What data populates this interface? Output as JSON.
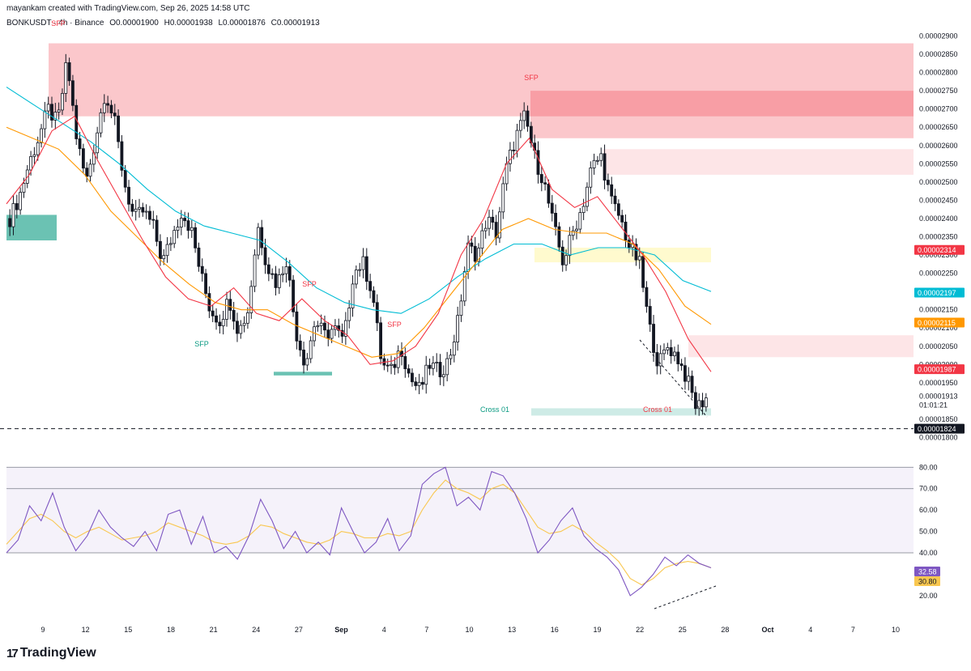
{
  "header": {
    "credit": "mayankam created with TradingView.com, Sep 26, 2025 14:58 UTC",
    "symbol": "BONKUSDT · 4h · Binance",
    "open": "O0.00001900",
    "high": "H0.00001938",
    "low": "L0.00001876",
    "close": "C0.00001913"
  },
  "footer": {
    "brand": "TradingView",
    "brand_mark": "17"
  },
  "colors": {
    "bull": "#ffffff",
    "bear": "#131722",
    "supply": "#f23645",
    "demand": "#089981",
    "ema_fast": "#f23645",
    "ema_mid": "#ff9800",
    "ema_slow": "#00bcd4",
    "rsi": "#7e57c2",
    "rsi_ma": "#f9c74f",
    "zone_yellow": "#fff59d"
  },
  "chart_data": [
    {
      "type": "candlestick",
      "title": "BONKUSDT · 4h · Binance",
      "ylim": [
        1.79e-05,
        2.91e-05
      ],
      "y_ticks": [
        "0.00002900",
        "0.00002850",
        "0.00002800",
        "0.00002750",
        "0.00002700",
        "0.00002650",
        "0.00002600",
        "0.00002550",
        "0.00002500",
        "0.00002450",
        "0.00002400",
        "0.00002350",
        "0.00002300",
        "0.00002250",
        "0.00002200",
        "0.00002150",
        "0.00002100",
        "0.00002050",
        "0.00002000",
        "0.00001950",
        "0.00001850",
        "0.00001800"
      ],
      "x_ticks": [
        "9",
        "12",
        "15",
        "18",
        "21",
        "24",
        "27",
        "Sep",
        "4",
        "7",
        "10",
        "13",
        "16",
        "19",
        "22",
        "25",
        "28",
        "Oct",
        "4",
        "7",
        "10"
      ],
      "price_labels": [
        {
          "text": "0.00002314",
          "value": 2.314e-05,
          "color": "#f23645"
        },
        {
          "text": "0.00002197",
          "value": 2.197e-05,
          "color": "#00bcd4"
        },
        {
          "text": "0.00002115",
          "value": 2.115e-05,
          "color": "#ff9800"
        },
        {
          "text": "0.00001987",
          "value": 1.987e-05,
          "color": "#f23645"
        },
        {
          "text": "0.00001824",
          "value": 1.824e-05,
          "color": "#131722"
        }
      ],
      "last_price": {
        "text": "0.00001913",
        "countdown": "01:01:21",
        "value": 1.913e-05
      },
      "dashed_level": 1.824e-05,
      "annotations": [
        {
          "text": "SFP",
          "color": "#f23645"
        },
        {
          "text": "SFP",
          "color": "#f23645"
        },
        {
          "text": "SFP",
          "color": "#f23645"
        },
        {
          "text": "SFP",
          "color": "#f23645"
        },
        {
          "text": "SFP",
          "color": "#089981"
        },
        {
          "text": "Cross 01",
          "color": "#089981"
        },
        {
          "text": "Cross 01",
          "color": "#f23645"
        }
      ],
      "zones": [
        {
          "kind": "supply",
          "from": 2.68e-05,
          "to": 2.88e-05
        },
        {
          "kind": "supply",
          "from": 2.62e-05,
          "to": 2.75e-05
        },
        {
          "kind": "supply_light",
          "from": 2.52e-05,
          "to": 2.59e-05
        },
        {
          "kind": "supply_light",
          "from": 2.02e-05,
          "to": 2.08e-05
        },
        {
          "kind": "yellow",
          "from": 2.28e-05,
          "to": 2.32e-05
        },
        {
          "kind": "demand",
          "from": 2.34e-05,
          "to": 2.41e-05
        },
        {
          "kind": "demand",
          "from": 1.97e-05,
          "to": 1.98e-05
        },
        {
          "kind": "demand_light",
          "from": 1.86e-05,
          "to": 1.88e-05
        }
      ],
      "price_path": [
        2.4e-05,
        2.46e-05,
        2.55e-05,
        2.62e-05,
        2.7e-05,
        2.66e-05,
        2.83e-05,
        2.62e-05,
        2.5e-05,
        2.62e-05,
        2.75e-05,
        2.66e-05,
        2.5e-05,
        2.4e-05,
        2.42e-05,
        2.38e-05,
        2.28e-05,
        2.35e-05,
        2.42e-05,
        2.37e-05,
        2.25e-05,
        2.15e-05,
        2.12e-05,
        2.18e-05,
        2.09e-05,
        2.15e-05,
        2.38e-05,
        2.27e-05,
        2.22e-05,
        2.29e-05,
        2.09e-05,
        2e-05,
        2.12e-05,
        2.08e-05,
        2.1e-05,
        2.06e-05,
        2.25e-05,
        2.28e-05,
        2.2e-05,
        2e-05,
        1.98e-05,
        2.05e-05,
        1.96e-05,
        1.93e-05,
        2e-05,
        1.98e-05,
        2.01e-05,
        2.12e-05,
        2.32e-05,
        2.3e-05,
        2.4e-05,
        2.36e-05,
        2.53e-05,
        2.62e-05,
        2.68e-05,
        2.57e-05,
        2.5e-05,
        2.38e-05,
        2.28e-05,
        2.36e-05,
        2.43e-05,
        2.54e-05,
        2.57e-05,
        2.45e-05,
        2.4e-05,
        2.32e-05,
        2.28e-05,
        2.11e-05,
        2e-05,
        2.05e-05,
        2.02e-05,
        1.96e-05,
        1.88e-05,
        1.91e-05
      ],
      "ema_fast_path": [
        2.44e-05,
        2.52e-05,
        2.64e-05,
        2.68e-05,
        2.56e-05,
        2.45e-05,
        2.34e-05,
        2.24e-05,
        2.18e-05,
        2.16e-05,
        2.21e-05,
        2.14e-05,
        2.12e-05,
        2.18e-05,
        2.12e-05,
        2.08e-05,
        2e-05,
        2.01e-05,
        2.05e-05,
        2.14e-05,
        2.3e-05,
        2.4e-05,
        2.55e-05,
        2.62e-05,
        2.48e-05,
        2.43e-05,
        2.46e-05,
        2.38e-05,
        2.3e-05,
        2.2e-05,
        2.07e-05,
        1.98e-05
      ],
      "ema_mid_path": [
        2.65e-05,
        2.62e-05,
        2.59e-05,
        2.52e-05,
        2.42e-05,
        2.35e-05,
        2.28e-05,
        2.22e-05,
        2.17e-05,
        2.15e-05,
        2.15e-05,
        2.11e-05,
        2.08e-05,
        2.05e-05,
        2.02e-05,
        2.03e-05,
        2.1e-05,
        2.19e-05,
        2.28e-05,
        2.37e-05,
        2.4e-05,
        2.37e-05,
        2.36e-05,
        2.36e-05,
        2.33e-05,
        2.26e-05,
        2.16e-05,
        2.11e-05
      ],
      "ema_slow_path": [
        2.76e-05,
        2.71e-05,
        2.66e-05,
        2.61e-05,
        2.55e-05,
        2.48e-05,
        2.42e-05,
        2.38e-05,
        2.36e-05,
        2.34e-05,
        2.28e-05,
        2.21e-05,
        2.17e-05,
        2.15e-05,
        2.14e-05,
        2.18e-05,
        2.24e-05,
        2.29e-05,
        2.33e-05,
        2.33e-05,
        2.3e-05,
        2.32e-05,
        2.32e-05,
        2.3e-05,
        2.23e-05,
        2.2e-05
      ]
    },
    {
      "type": "line",
      "title": "RSI",
      "ylim": [
        12,
        82
      ],
      "y_ticks": [
        "80.00",
        "70.00",
        "60.00",
        "50.00",
        "40.00",
        "20.00"
      ],
      "bands": [
        80,
        70,
        40
      ],
      "current": [
        {
          "text": "32.58",
          "color": "#7e57c2"
        },
        {
          "text": "30.80",
          "color": "#f9c74f"
        }
      ],
      "rsi_path": [
        40,
        46,
        62,
        55,
        68,
        52,
        41,
        48,
        60,
        52,
        47,
        43,
        50,
        41,
        58,
        60,
        44,
        57,
        40,
        43,
        37,
        48,
        65,
        55,
        42,
        50,
        40,
        45,
        39,
        61,
        50,
        40,
        45,
        56,
        41,
        48,
        72,
        77,
        80,
        62,
        66,
        60,
        78,
        76,
        68,
        56,
        40,
        46,
        55,
        61,
        48,
        42,
        38,
        32,
        20,
        24,
        30,
        38,
        34,
        39,
        35,
        33
      ],
      "rsi_ma_path": [
        44,
        50,
        56,
        58,
        55,
        50,
        47,
        50,
        52,
        49,
        46,
        47,
        48,
        50,
        54,
        52,
        50,
        48,
        45,
        44,
        45,
        48,
        53,
        52,
        49,
        47,
        45,
        44,
        46,
        50,
        49,
        47,
        47,
        49,
        48,
        50,
        60,
        68,
        74,
        70,
        68,
        65,
        70,
        72,
        68,
        60,
        52,
        49,
        50,
        53,
        50,
        45,
        41,
        36,
        28,
        25,
        28,
        33,
        35,
        36,
        35,
        33
      ]
    }
  ]
}
